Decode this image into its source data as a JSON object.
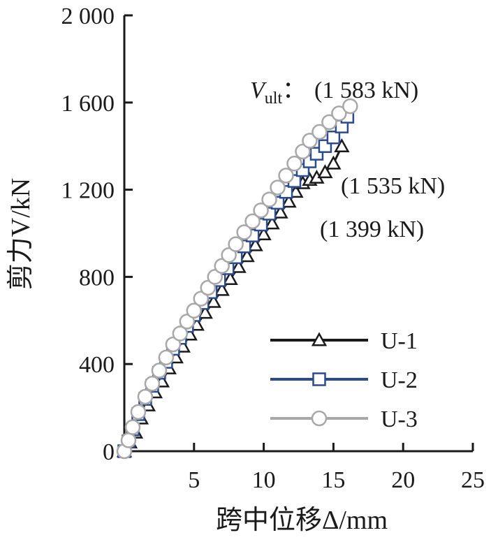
{
  "chart_data": {
    "type": "line",
    "xlabel": "跨中位移Δ/mm",
    "ylabel": "剪力V/kN",
    "xlim": [
      0,
      25
    ],
    "ylim": [
      0,
      2000
    ],
    "x_ticks": [
      5,
      10,
      15,
      20,
      25
    ],
    "x_tick_labels": [
      "5",
      "10",
      "15",
      "20",
      "25"
    ],
    "y_ticks": [
      0,
      400,
      800,
      1200,
      1600,
      2000
    ],
    "y_tick_labels": [
      "0",
      "400",
      "800",
      "1 200",
      "1 600",
      "2 000"
    ],
    "grid": false,
    "legend_position": "bottom-right",
    "colors": {
      "U-1": "#1a1a1a",
      "U-2": "#2b4a8f",
      "U-3": "#a8a8a8"
    },
    "series": [
      {
        "name": "U-1",
        "marker": "triangle",
        "x": [
          0.0,
          0.4,
          0.8,
          1.2,
          1.7,
          2.2,
          2.7,
          3.2,
          3.7,
          4.2,
          4.7,
          5.2,
          5.8,
          6.4,
          7.0,
          7.6,
          8.2,
          8.8,
          9.4,
          10.0,
          10.6,
          11.2,
          11.8,
          12.3,
          12.8,
          13.3,
          13.8,
          14.4,
          15.0,
          15.6
        ],
        "y": [
          0,
          40,
          85,
          150,
          210,
          270,
          320,
          380,
          430,
          480,
          535,
          580,
          635,
          685,
          740,
          790,
          845,
          895,
          945,
          995,
          1045,
          1095,
          1145,
          1190,
          1230,
          1245,
          1255,
          1280,
          1320,
          1399
        ]
      },
      {
        "name": "U-2",
        "marker": "square",
        "x": [
          0.0,
          0.3,
          0.6,
          1.0,
          1.5,
          2.0,
          2.5,
          3.0,
          3.5,
          4.0,
          4.5,
          5.0,
          5.6,
          6.2,
          6.8,
          7.4,
          8.0,
          8.6,
          9.2,
          9.8,
          10.4,
          11.0,
          11.6,
          12.2,
          12.8,
          13.3,
          13.8,
          14.4,
          15.0,
          15.6,
          16.0
        ],
        "y": [
          0,
          45,
          100,
          170,
          240,
          300,
          360,
          410,
          470,
          520,
          575,
          625,
          680,
          730,
          785,
          840,
          890,
          940,
          990,
          1040,
          1090,
          1140,
          1190,
          1240,
          1290,
          1330,
          1365,
          1400,
          1440,
          1490,
          1535
        ]
      },
      {
        "name": "U-3",
        "marker": "circle",
        "x": [
          0.0,
          0.3,
          0.6,
          1.0,
          1.5,
          2.0,
          2.5,
          3.0,
          3.5,
          4.0,
          4.5,
          5.0,
          5.5,
          6.0,
          6.5,
          7.0,
          7.5,
          8.0,
          8.6,
          9.2,
          9.8,
          10.4,
          11.0,
          11.6,
          12.2,
          12.8,
          13.3,
          14.0,
          14.7,
          15.4,
          16.2
        ],
        "y": [
          0,
          50,
          110,
          180,
          250,
          310,
          370,
          430,
          490,
          540,
          595,
          645,
          700,
          750,
          800,
          850,
          900,
          950,
          1005,
          1055,
          1105,
          1155,
          1210,
          1265,
          1320,
          1375,
          1425,
          1465,
          1510,
          1550,
          1583
        ]
      }
    ],
    "annotations": {
      "vult_symbol": "V",
      "vult_subscript": "ult",
      "vult_colon": "：",
      "u3_label": "(1 583 kN)",
      "u2_label": "(1 535 kN)",
      "u1_label": "(1 399 kN)"
    }
  }
}
